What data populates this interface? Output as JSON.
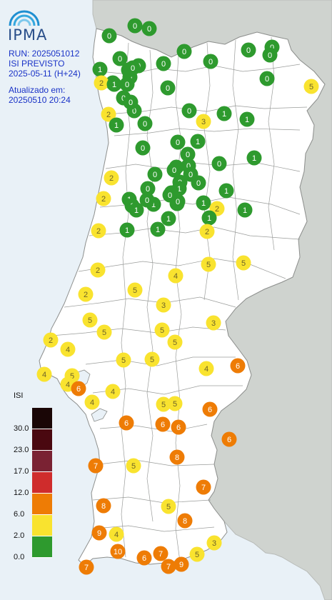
{
  "header": {
    "logo_text": "IPMA",
    "run": "RUN: 2025051012",
    "product": "ISI PREVISTO",
    "forecast": "2025-05-11 (H+24)",
    "updated_label": "Atualizado em:",
    "updated_time": "20250510 20:24"
  },
  "legend": {
    "title": "ISI",
    "classes": [
      {
        "color": "#1a0606",
        "label": ""
      },
      {
        "color": "#4a0810",
        "label": "30.0"
      },
      {
        "color": "#7a2233",
        "label": "23.0"
      },
      {
        "color": "#cf2c2c",
        "label": "17.0"
      },
      {
        "color": "#ee7c05",
        "label": "12.0"
      },
      {
        "color": "#f9e32f",
        "label": "6.0"
      },
      {
        "color": "#2e9a2e",
        "label": "2.0"
      }
    ],
    "bottom_label": "0.0"
  },
  "colors": {
    "sea": "#e9f1f7",
    "land": "#ffffff",
    "neighbor": "#cfd3cf",
    "border": "#a8aaa8",
    "low": "#2e9a2e",
    "moderate": "#f9e32f",
    "high": "#ee7c05"
  },
  "stations": [
    {
      "v": "0",
      "c": "g"
    },
    {
      "v": "0",
      "c": "g"
    },
    {
      "v": "0",
      "c": "g"
    },
    {
      "v": "0",
      "c": "g"
    },
    {
      "v": "0",
      "c": "g"
    },
    {
      "v": "0",
      "c": "g"
    },
    {
      "v": "0",
      "c": "g"
    },
    {
      "v": "0",
      "c": "g"
    },
    {
      "v": "0",
      "c": "g"
    },
    {
      "v": "1",
      "c": "g"
    },
    {
      "v": "0",
      "c": "g"
    },
    {
      "v": "0",
      "c": "g"
    },
    {
      "v": "0",
      "c": "g"
    },
    {
      "v": "0",
      "c": "g"
    },
    {
      "v": "0",
      "c": "g"
    },
    {
      "v": "2",
      "c": "y"
    },
    {
      "v": "1",
      "c": "g"
    },
    {
      "v": "0",
      "c": "g"
    },
    {
      "v": "0",
      "c": "g"
    },
    {
      "v": "0",
      "c": "g"
    },
    {
      "v": "0",
      "c": "g"
    },
    {
      "v": "0",
      "c": "g"
    },
    {
      "v": "0",
      "c": "g"
    },
    {
      "v": "0",
      "c": "g"
    },
    {
      "v": "2",
      "c": "y"
    },
    {
      "v": "1",
      "c": "g"
    },
    {
      "v": "0",
      "c": "g"
    },
    {
      "v": "0",
      "c": "g"
    },
    {
      "v": "1",
      "c": "g"
    },
    {
      "v": "1",
      "c": "g"
    },
    {
      "v": "3",
      "c": "y"
    },
    {
      "v": "0",
      "c": "g"
    },
    {
      "v": "0",
      "c": "g"
    },
    {
      "v": "1",
      "c": "g"
    },
    {
      "v": "0",
      "c": "g"
    },
    {
      "v": "1",
      "c": "g"
    },
    {
      "v": "0",
      "c": "g"
    },
    {
      "v": "1",
      "c": "g"
    },
    {
      "v": "0",
      "c": "g"
    },
    {
      "v": "0",
      "c": "g"
    },
    {
      "v": "0",
      "c": "g"
    },
    {
      "v": "0",
      "c": "g"
    },
    {
      "v": "0",
      "c": "g"
    },
    {
      "v": "0",
      "c": "g"
    },
    {
      "v": "2",
      "c": "y"
    },
    {
      "v": "1",
      "c": "g"
    },
    {
      "v": "1",
      "c": "g"
    },
    {
      "v": "0",
      "c": "g"
    },
    {
      "v": "1",
      "c": "g"
    },
    {
      "v": "2",
      "c": "y"
    },
    {
      "v": "1",
      "c": "g"
    },
    {
      "v": "1",
      "c": "g"
    },
    {
      "v": "1",
      "c": "g"
    },
    {
      "v": "1",
      "c": "g"
    },
    {
      "v": "2",
      "c": "y"
    },
    {
      "v": "1",
      "c": "g"
    },
    {
      "v": "0",
      "c": "g"
    },
    {
      "v": "1",
      "c": "g"
    },
    {
      "v": "0",
      "c": "g"
    },
    {
      "v": "0",
      "c": "g"
    },
    {
      "v": "1",
      "c": "g"
    },
    {
      "v": "1",
      "c": "g"
    },
    {
      "v": "2",
      "c": "y"
    },
    {
      "v": "1",
      "c": "g"
    },
    {
      "v": "1",
      "c": "g"
    },
    {
      "v": "1",
      "c": "g"
    },
    {
      "v": "2",
      "c": "y"
    },
    {
      "v": "5",
      "c": "y"
    },
    {
      "v": "5",
      "c": "y"
    },
    {
      "v": "2",
      "c": "y"
    },
    {
      "v": "4",
      "c": "y"
    },
    {
      "v": "5",
      "c": "y"
    },
    {
      "v": "2",
      "c": "y"
    },
    {
      "v": "3",
      "c": "y"
    },
    {
      "v": "5",
      "c": "y"
    },
    {
      "v": "3",
      "c": "y"
    },
    {
      "v": "5",
      "c": "y"
    },
    {
      "v": "5",
      "c": "y"
    },
    {
      "v": "2",
      "c": "y"
    },
    {
      "v": "4",
      "c": "y"
    },
    {
      "v": "5",
      "c": "y"
    },
    {
      "v": "5",
      "c": "y"
    },
    {
      "v": "5",
      "c": "y"
    },
    {
      "v": "4",
      "c": "y"
    },
    {
      "v": "6",
      "c": "o"
    },
    {
      "v": "4",
      "c": "y"
    },
    {
      "v": "5",
      "c": "y"
    },
    {
      "v": "4",
      "c": "y"
    },
    {
      "v": "6",
      "c": "o"
    },
    {
      "v": "4",
      "c": "y"
    },
    {
      "v": "4",
      "c": "y"
    },
    {
      "v": "5",
      "c": "y"
    },
    {
      "v": "5",
      "c": "y"
    },
    {
      "v": "6",
      "c": "o"
    },
    {
      "v": "6",
      "c": "o"
    },
    {
      "v": "6",
      "c": "o"
    },
    {
      "v": "6",
      "c": "o"
    },
    {
      "v": "6",
      "c": "o"
    },
    {
      "v": "8",
      "c": "o"
    },
    {
      "v": "7",
      "c": "o"
    },
    {
      "v": "5",
      "c": "y"
    },
    {
      "v": "7",
      "c": "o"
    },
    {
      "v": "8",
      "c": "o"
    },
    {
      "v": "5",
      "c": "y"
    },
    {
      "v": "8",
      "c": "o"
    },
    {
      "v": "9",
      "c": "o"
    },
    {
      "v": "4",
      "c": "y"
    },
    {
      "v": "3",
      "c": "y"
    },
    {
      "v": "10",
      "c": "o"
    },
    {
      "v": "5",
      "c": "y"
    },
    {
      "v": "7",
      "c": "o"
    },
    {
      "v": "6",
      "c": "o"
    },
    {
      "v": "7",
      "c": "o"
    },
    {
      "v": "7",
      "c": "o"
    },
    {
      "v": "9",
      "c": "o"
    },
    {
      "v": "5",
      "c": "y"
    }
  ]
}
